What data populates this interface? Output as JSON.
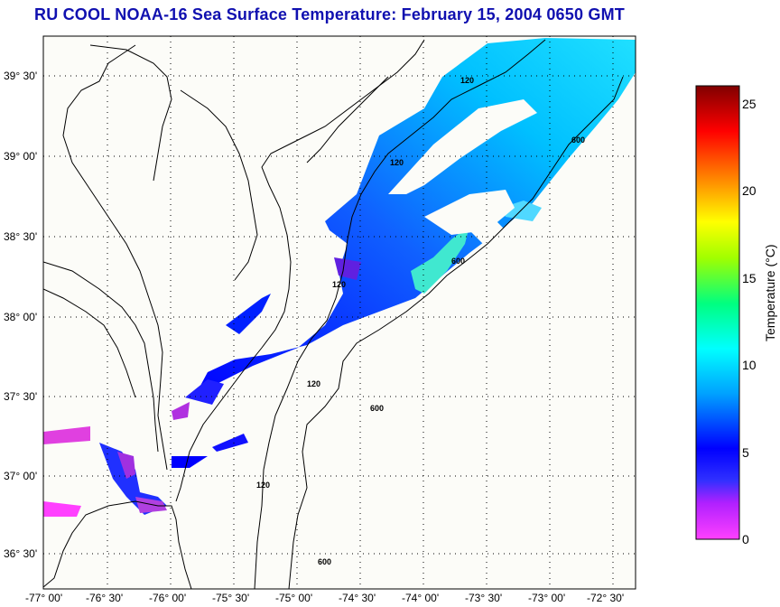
{
  "title": "RU COOL  NOAA-16  Sea Surface Temperature:  February 15, 2004 0650 GMT",
  "map": {
    "lon_labels": [
      "-77° 00'",
      "-76° 30'",
      "-76° 00'",
      "-75° 30'",
      "-75° 00'",
      "-74° 30'",
      "-74° 00'",
      "-73° 30'",
      "-73° 00'",
      "-72° 30'"
    ],
    "lat_labels": [
      "39° 30'",
      "39° 00'",
      "38° 30'",
      "38° 00'",
      "37° 30'",
      "37° 00'",
      "36° 30'"
    ],
    "grid": "dotted",
    "contour_labels": [
      "120",
      "600",
      "120",
      "600",
      "120",
      "600",
      "120",
      "120",
      "600"
    ]
  },
  "colorbar": {
    "title": "Temperature (°C)",
    "ticks": [
      "0",
      "5",
      "10",
      "15",
      "20",
      "25"
    ],
    "range": [
      0,
      26
    ],
    "colors": [
      "#ff40ff",
      "#b020ff",
      "#0000ff",
      "#00a0ff",
      "#00ffff",
      "#00ff80",
      "#80ff00",
      "#ffff00",
      "#ff8000",
      "#ff0000",
      "#800000"
    ]
  }
}
